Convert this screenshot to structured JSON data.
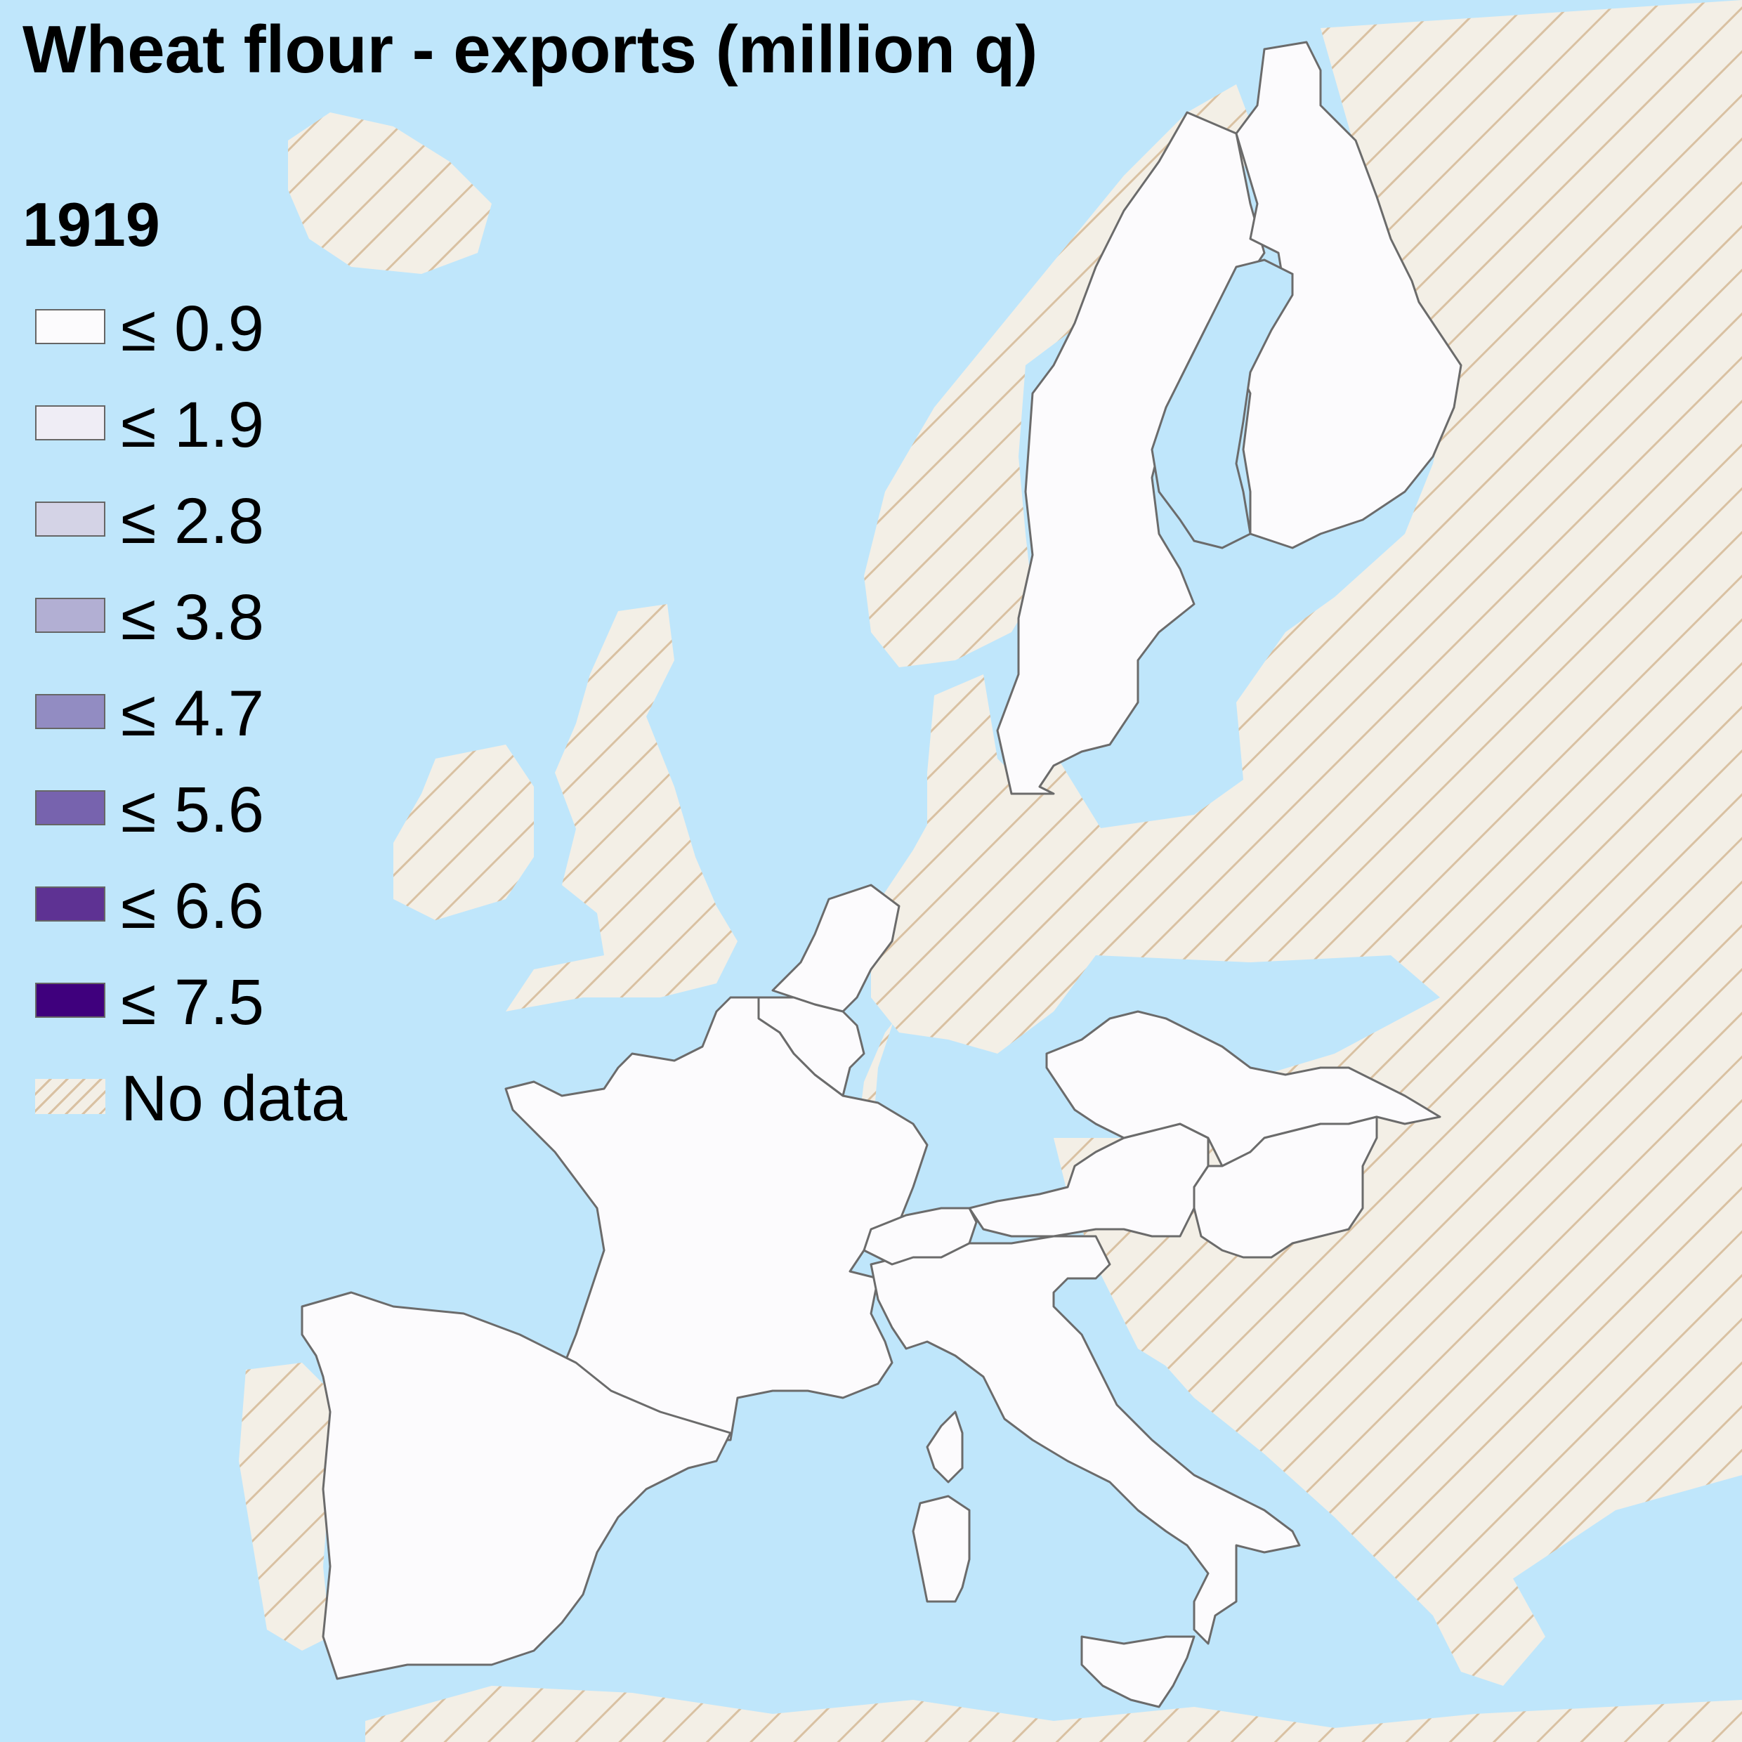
{
  "title": "Wheat flour - exports (million q)",
  "year": "1919",
  "colors": {
    "sea": "#bfe6fb",
    "no_data_fill": "#f3efe6",
    "no_data_hatch": "#d9c1a2",
    "border": "#6b6b6b"
  },
  "legend": [
    {
      "label": "≤ 0.9",
      "color": "#fcfbfd"
    },
    {
      "label": "≤ 1.9",
      "color": "#efedf5"
    },
    {
      "label": "≤ 2.8",
      "color": "#d4d3e6"
    },
    {
      "label": "≤ 3.8",
      "color": "#b2afd3"
    },
    {
      "label": "≤ 4.7",
      "color": "#928cc2"
    },
    {
      "label": "≤ 5.6",
      "color": "#7763ae"
    },
    {
      "label": "≤ 6.6",
      "color": "#5e3293"
    },
    {
      "label": "≤ 7.5",
      "color": "#3f007d"
    },
    {
      "label": "No data",
      "pattern": "hatched"
    }
  ],
  "regions_with_data": [
    "Sweden",
    "Finland",
    "Netherlands",
    "Belgium",
    "France",
    "Spain",
    "Italy",
    "Czechoslovakia",
    "Austria",
    "Hungary",
    "Switzerland"
  ]
}
